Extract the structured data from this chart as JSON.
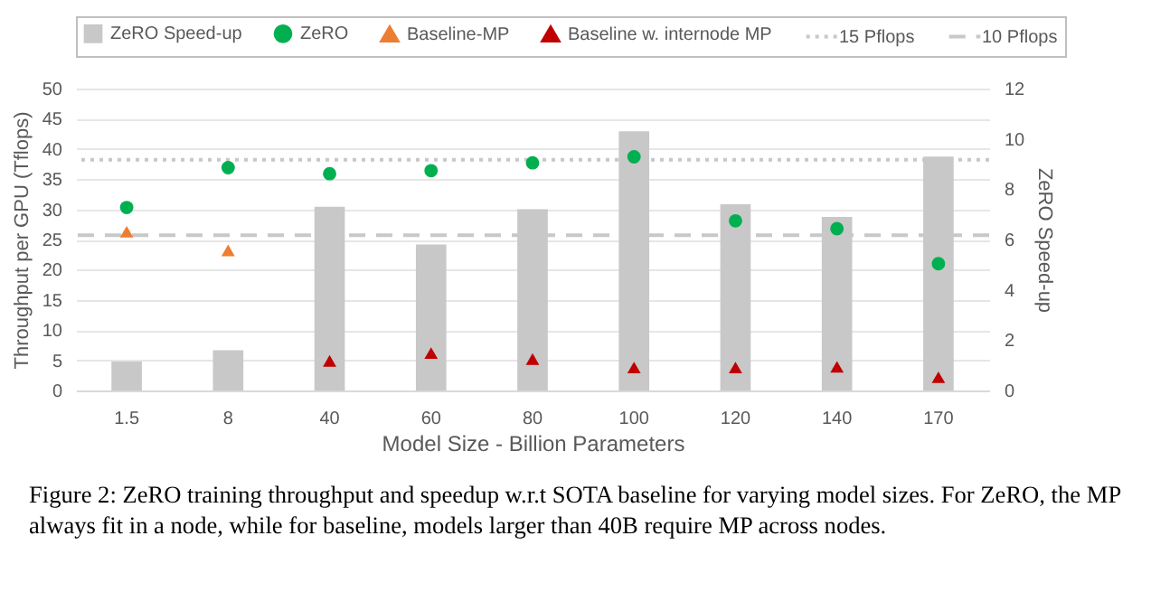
{
  "chart_data": {
    "type": "scatter",
    "categories": [
      "1.5",
      "8",
      "40",
      "60",
      "80",
      "100",
      "120",
      "140",
      "170"
    ],
    "xlabel": "Model Size - Billion Parameters",
    "ylabel": "Throughput per GPU (Tflops)",
    "y2label": "ZeRO Speed-up",
    "ylim": [
      0,
      50
    ],
    "yticks": [
      0,
      5,
      10,
      15,
      20,
      25,
      30,
      35,
      40,
      45,
      50
    ],
    "y2lim": [
      0,
      12
    ],
    "y2ticks": [
      0,
      2,
      4,
      6,
      8,
      10,
      12
    ],
    "grid": "y",
    "legend": "top",
    "series": [
      {
        "name": "ZeRO Speed-up",
        "type": "bar",
        "axis": "y2",
        "color": "#c8c8c8",
        "values": [
          1.15,
          1.6,
          7.3,
          5.8,
          7.2,
          10.3,
          7.4,
          6.9,
          9.3
        ]
      },
      {
        "name": "ZeRO",
        "marker": "circle",
        "color": "#00b050",
        "values": [
          30.3,
          36.9,
          35.9,
          36.4,
          37.7,
          38.7,
          28.1,
          26.8,
          21.0
        ]
      },
      {
        "name": "Baseline-MP",
        "marker": "triangle",
        "color": "#ed7d31",
        "values": [
          26.3,
          23.2,
          null,
          null,
          null,
          null,
          null,
          null,
          null
        ]
      },
      {
        "name": "Baseline w. internode MP",
        "marker": "triangle",
        "color": "#c00000",
        "values": [
          null,
          null,
          4.9,
          6.2,
          5.2,
          3.8,
          3.8,
          3.9,
          2.2
        ]
      }
    ],
    "ref_lines": [
      {
        "axis": "y",
        "value": 38.2,
        "label": "15 Pflops",
        "line_style": "dotted",
        "color": "#c8c8c8"
      },
      {
        "axis": "y",
        "value": 25.7,
        "label": "10 Pflops",
        "line_style": "dashed",
        "color": "#c8c8c8"
      }
    ],
    "annotations": [
      "Figure 2: ZeRO training throughput and speedup w.r.t SOTA baseline for varying model sizes. For ZeRO, the MP always fit in a node, while for baseline, models larger than 40B require MP across nodes."
    ]
  }
}
